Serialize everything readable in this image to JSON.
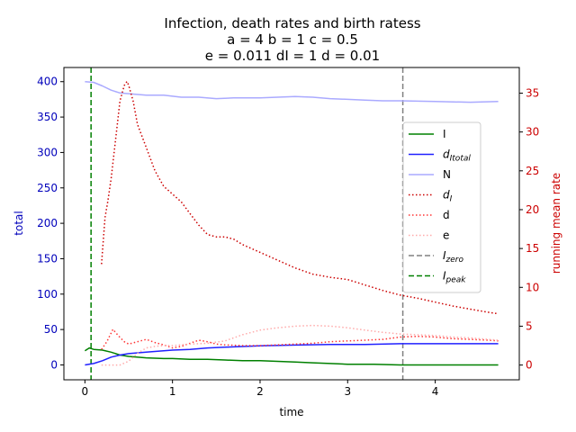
{
  "chart_data": {
    "type": "line",
    "title_lines": [
      "Infection, death rates and birth ratess",
      "a = 4   b = 1   c = 0.5",
      "e = 0.011   dI = 1   d = 0.01"
    ],
    "xlabel": "time",
    "ylabel_left": "total",
    "ylabel_right": "running mean rate",
    "xlim": [
      -0.24,
      4.96
    ],
    "ylim_left": [
      -21,
      420
    ],
    "ylim_right": [
      -1.9,
      38.3
    ],
    "x_ticks": [
      0,
      1,
      2,
      3,
      4
    ],
    "y_left_ticks": [
      0,
      50,
      100,
      150,
      200,
      250,
      300,
      350,
      400
    ],
    "y_right_ticks": [
      0,
      5,
      10,
      15,
      20,
      25,
      30,
      35
    ],
    "left_axis_color": "#0000bb",
    "right_axis_color": "#cc0000",
    "grid": false,
    "legend_position": "center-right",
    "series": [
      {
        "name": "I",
        "axis": "left",
        "color": "#008000",
        "style": "solid",
        "points": [
          [
            0,
            20
          ],
          [
            0.05,
            24
          ],
          [
            0.1,
            22
          ],
          [
            0.2,
            21
          ],
          [
            0.3,
            18
          ],
          [
            0.4,
            14
          ],
          [
            0.5,
            12
          ],
          [
            0.7,
            10
          ],
          [
            0.9,
            9
          ],
          [
            1.0,
            9
          ],
          [
            1.2,
            8
          ],
          [
            1.4,
            8
          ],
          [
            1.6,
            7
          ],
          [
            1.8,
            6
          ],
          [
            2.0,
            6
          ],
          [
            2.2,
            5
          ],
          [
            2.4,
            4
          ],
          [
            2.6,
            3
          ],
          [
            2.8,
            2
          ],
          [
            3.0,
            1
          ],
          [
            3.3,
            1
          ],
          [
            3.6,
            0
          ],
          [
            4.0,
            0
          ],
          [
            4.4,
            0
          ],
          [
            4.72,
            0
          ]
        ]
      },
      {
        "name": "d_Itotal",
        "axis": "left",
        "color": "#2020ff",
        "style": "solid",
        "points": [
          [
            0,
            0
          ],
          [
            0.1,
            2
          ],
          [
            0.2,
            6
          ],
          [
            0.3,
            11
          ],
          [
            0.4,
            14
          ],
          [
            0.5,
            16
          ],
          [
            0.7,
            18
          ],
          [
            0.9,
            20
          ],
          [
            1.0,
            21
          ],
          [
            1.2,
            22
          ],
          [
            1.4,
            24
          ],
          [
            1.6,
            25
          ],
          [
            1.8,
            26
          ],
          [
            2.0,
            27
          ],
          [
            2.4,
            28
          ],
          [
            2.8,
            29
          ],
          [
            3.2,
            29
          ],
          [
            3.6,
            30
          ],
          [
            4.0,
            30
          ],
          [
            4.4,
            30
          ],
          [
            4.72,
            30
          ]
        ]
      },
      {
        "name": "N",
        "axis": "left",
        "color": "#aaaaff",
        "style": "solid",
        "points": [
          [
            0,
            400
          ],
          [
            0.1,
            399
          ],
          [
            0.2,
            394
          ],
          [
            0.3,
            388
          ],
          [
            0.4,
            384
          ],
          [
            0.5,
            383
          ],
          [
            0.7,
            381
          ],
          [
            0.9,
            381
          ],
          [
            1.1,
            378
          ],
          [
            1.3,
            378
          ],
          [
            1.5,
            376
          ],
          [
            1.7,
            377
          ],
          [
            2.0,
            377
          ],
          [
            2.2,
            378
          ],
          [
            2.4,
            379
          ],
          [
            2.6,
            378
          ],
          [
            2.8,
            376
          ],
          [
            3.0,
            375
          ],
          [
            3.2,
            374
          ],
          [
            3.4,
            373
          ],
          [
            3.6,
            373
          ],
          [
            4.0,
            372
          ],
          [
            4.4,
            371
          ],
          [
            4.72,
            372
          ]
        ]
      },
      {
        "name": "d_I",
        "axis": "right",
        "color": "#cc0000",
        "style": "dotted",
        "points": [
          [
            0.19,
            13
          ],
          [
            0.23,
            19
          ],
          [
            0.26,
            21
          ],
          [
            0.3,
            24
          ],
          [
            0.35,
            29
          ],
          [
            0.4,
            34
          ],
          [
            0.45,
            36
          ],
          [
            0.48,
            36.5
          ],
          [
            0.5,
            36
          ],
          [
            0.55,
            34
          ],
          [
            0.6,
            31
          ],
          [
            0.7,
            28
          ],
          [
            0.8,
            25
          ],
          [
            0.9,
            23
          ],
          [
            1.0,
            22
          ],
          [
            1.1,
            21
          ],
          [
            1.2,
            19.5
          ],
          [
            1.3,
            18
          ],
          [
            1.4,
            16.8
          ],
          [
            1.5,
            16.5
          ],
          [
            1.6,
            16.5
          ],
          [
            1.7,
            16.2
          ],
          [
            1.8,
            15.5
          ],
          [
            1.9,
            15
          ],
          [
            2.0,
            14.5
          ],
          [
            2.2,
            13.5
          ],
          [
            2.4,
            12.5
          ],
          [
            2.6,
            11.7
          ],
          [
            2.8,
            11.3
          ],
          [
            3.0,
            11
          ],
          [
            3.2,
            10.3
          ],
          [
            3.4,
            9.6
          ],
          [
            3.6,
            9
          ],
          [
            3.8,
            8.6
          ],
          [
            4.0,
            8.1
          ],
          [
            4.2,
            7.6
          ],
          [
            4.4,
            7.2
          ],
          [
            4.6,
            6.8
          ],
          [
            4.72,
            6.6
          ]
        ]
      },
      {
        "name": "d",
        "axis": "right",
        "color": "#ff3333",
        "style": "dotted",
        "points": [
          [
            0.19,
            2
          ],
          [
            0.25,
            3
          ],
          [
            0.32,
            4.6
          ],
          [
            0.38,
            3.8
          ],
          [
            0.45,
            3
          ],
          [
            0.5,
            2.7
          ],
          [
            0.6,
            3
          ],
          [
            0.7,
            3.3
          ],
          [
            0.8,
            2.9
          ],
          [
            0.9,
            2.6
          ],
          [
            1.0,
            2.2
          ],
          [
            1.1,
            2.4
          ],
          [
            1.2,
            2.8
          ],
          [
            1.3,
            3.2
          ],
          [
            1.4,
            3
          ],
          [
            1.5,
            2.7
          ],
          [
            1.6,
            2.6
          ],
          [
            1.8,
            2.5
          ],
          [
            2.0,
            2.5
          ],
          [
            2.2,
            2.6
          ],
          [
            2.4,
            2.7
          ],
          [
            2.6,
            2.8
          ],
          [
            2.8,
            3
          ],
          [
            3.0,
            3.1
          ],
          [
            3.2,
            3.2
          ],
          [
            3.4,
            3.3
          ],
          [
            3.6,
            3.6
          ],
          [
            3.8,
            3.7
          ],
          [
            4.0,
            3.6
          ],
          [
            4.2,
            3.4
          ],
          [
            4.4,
            3.3
          ],
          [
            4.6,
            3.2
          ],
          [
            4.72,
            3.1
          ]
        ]
      },
      {
        "name": "e",
        "axis": "right",
        "color": "#ffaaaa",
        "style": "dotted",
        "points": [
          [
            0.19,
            0
          ],
          [
            0.3,
            0
          ],
          [
            0.4,
            0
          ],
          [
            0.5,
            0.5
          ],
          [
            0.6,
            1.5
          ],
          [
            0.7,
            2.2
          ],
          [
            0.8,
            2.4
          ],
          [
            0.9,
            2.5
          ],
          [
            1.0,
            2.5
          ],
          [
            1.2,
            2.7
          ],
          [
            1.4,
            2.8
          ],
          [
            1.6,
            3.1
          ],
          [
            1.8,
            3.9
          ],
          [
            2.0,
            4.5
          ],
          [
            2.2,
            4.8
          ],
          [
            2.4,
            5
          ],
          [
            2.6,
            5.1
          ],
          [
            2.8,
            5
          ],
          [
            3.0,
            4.8
          ],
          [
            3.2,
            4.5
          ],
          [
            3.4,
            4.2
          ],
          [
            3.6,
            4
          ],
          [
            3.8,
            3.9
          ],
          [
            4.0,
            3.8
          ],
          [
            4.2,
            3.6
          ],
          [
            4.4,
            3.5
          ],
          [
            4.6,
            3.3
          ],
          [
            4.72,
            3.2
          ]
        ]
      }
    ],
    "vlines": [
      {
        "name": "I_zero",
        "x": 3.63,
        "color": "#808080",
        "style": "dashed"
      },
      {
        "name": "I_peak",
        "x": 0.07,
        "color": "#008000",
        "style": "dashed"
      }
    ],
    "legend": [
      {
        "main": "I",
        "sub": "",
        "color": "#008000",
        "style": "solid"
      },
      {
        "main": "d",
        "sub": "Itotal",
        "color": "#2020ff",
        "style": "solid"
      },
      {
        "main": "N",
        "sub": "",
        "color": "#aaaaff",
        "style": "solid"
      },
      {
        "main": "d",
        "sub": "I",
        "color": "#cc0000",
        "style": "dotted"
      },
      {
        "main": "d",
        "sub": "",
        "color": "#ff3333",
        "style": "dotted"
      },
      {
        "main": "e",
        "sub": "",
        "color": "#ffaaaa",
        "style": "dotted"
      },
      {
        "main": "I",
        "sub": "zero",
        "color": "#808080",
        "style": "dashed"
      },
      {
        "main": "I",
        "sub": "peak",
        "color": "#008000",
        "style": "dashed"
      }
    ]
  }
}
